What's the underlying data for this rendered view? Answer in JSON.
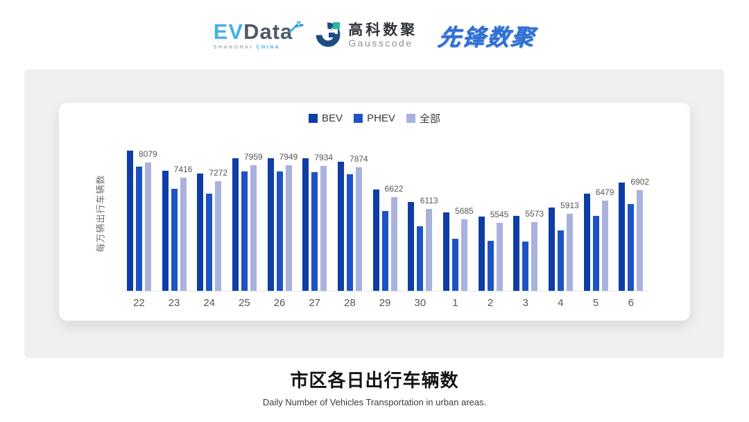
{
  "header": {
    "evdata": {
      "part1": "EV",
      "part2": "Data",
      "sub1": "SHANGHAI",
      "sub2": "CHINA"
    },
    "gausscode": {
      "cn": "高科数聚",
      "en": "Gausscode"
    },
    "pioneer": {
      "text": "先锋数聚"
    }
  },
  "palette": {
    "bev": "#0e3da5",
    "phev": "#1d53c6",
    "all": "#a8b2dc",
    "evdata_blue": "#41b1e6",
    "gausscode_navy": "#1d4c85",
    "gausscode_teal": "#2ab5a5",
    "pioneer_blue": "#2f6fd4"
  },
  "chart_data": {
    "type": "bar",
    "title": "市区各日出行车辆数",
    "subtitle": "Daily Number of Vehicles Transportation in urban areas.",
    "xlabel": "",
    "ylabel": "每万辆出行车辆数",
    "categories": [
      "22",
      "23",
      "24",
      "25",
      "26",
      "27",
      "28",
      "29",
      "30",
      "1",
      "2",
      "3",
      "4",
      "5",
      "6"
    ],
    "series": [
      {
        "name": "BEV",
        "color": "#0e3da5",
        "values": [
          8570,
          7730,
          7610,
          8230,
          8230,
          8230,
          8110,
          6930,
          6420,
          5980,
          5810,
          5830,
          6170,
          6760,
          7220
        ]
      },
      {
        "name": "PHEV",
        "color": "#1d53c6",
        "values": [
          7900,
          6980,
          6750,
          7700,
          7680,
          7650,
          7580,
          6040,
          5410,
          4880,
          4780,
          4770,
          5230,
          5830,
          6330
        ]
      },
      {
        "name": "全部",
        "color": "#a8b2dc",
        "values": [
          8079,
          7416,
          7272,
          7959,
          7949,
          7934,
          7874,
          6622,
          6113,
          5685,
          5545,
          5573,
          5913,
          6479,
          6902
        ]
      }
    ],
    "value_label_series": "全部",
    "value_labels": [
      8079,
      7416,
      7272,
      7959,
      7949,
      7934,
      7874,
      6622,
      6113,
      5685,
      5545,
      5573,
      5913,
      6479,
      6902
    ],
    "ylim": [
      2700,
      9200
    ],
    "grid": false,
    "legend_position": "top"
  },
  "footer": {
    "title": "市区各日出行车辆数",
    "subtitle": "Daily Number of Vehicles Transportation in urban areas."
  }
}
